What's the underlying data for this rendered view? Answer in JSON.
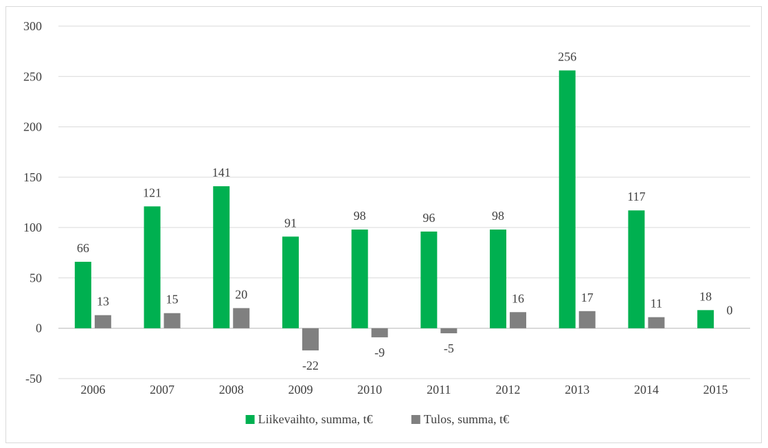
{
  "chart_data": {
    "type": "bar",
    "categories": [
      "2006",
      "2007",
      "2008",
      "2009",
      "2010",
      "2011",
      "2012",
      "2013",
      "2014",
      "2015"
    ],
    "series": [
      {
        "name": "Liikevaihto, summa, t€",
        "color": "#00b050",
        "values": [
          66,
          121,
          141,
          91,
          98,
          96,
          98,
          256,
          117,
          18
        ]
      },
      {
        "name": "Tulos, summa, t€",
        "color": "#808080",
        "values": [
          13,
          15,
          20,
          -22,
          -9,
          -5,
          16,
          17,
          11,
          0
        ]
      }
    ],
    "ylim": [
      -50,
      300
    ],
    "yticks": [
      -50,
      0,
      50,
      100,
      150,
      200,
      250,
      300
    ],
    "grid": true,
    "legend_position": "bottom",
    "data_labels": true,
    "title": "",
    "xlabel": "",
    "ylabel": ""
  }
}
